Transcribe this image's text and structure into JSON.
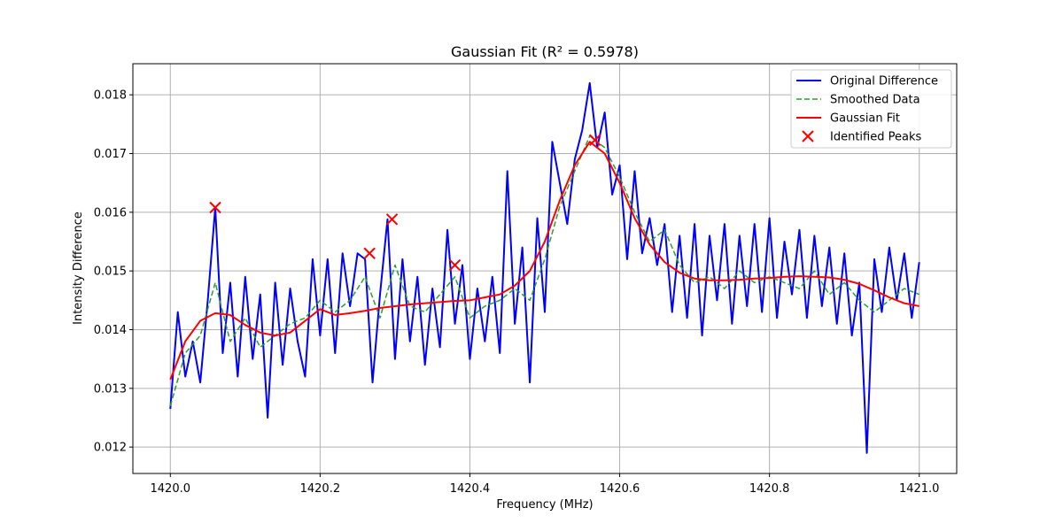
{
  "chart_data": {
    "type": "line",
    "title": "Gaussian Fit (R² = 0.5978)",
    "xlabel": "Frequency (MHz)",
    "ylabel": "Intensity Difference",
    "xlim": [
      1419.95,
      1421.05
    ],
    "ylim": [
      0.01155,
      0.01853
    ],
    "xticks": [
      1420.0,
      1420.2,
      1420.4,
      1420.6,
      1420.8,
      1421.0
    ],
    "xtick_labels": [
      "1420.0",
      "1420.2",
      "1420.4",
      "1420.6",
      "1420.8",
      "1421.0"
    ],
    "yticks": [
      0.012,
      0.013,
      0.014,
      0.015,
      0.016,
      0.017,
      0.018
    ],
    "ytick_labels": [
      "0.012",
      "0.013",
      "0.014",
      "0.015",
      "0.016",
      "0.017",
      "0.018"
    ],
    "grid": true,
    "legend_position": "upper right",
    "series": [
      {
        "name": "Original Difference",
        "style": "solid",
        "color": "#0000ff",
        "x": [
          1420.0,
          1420.01,
          1420.02,
          1420.03,
          1420.04,
          1420.05,
          1420.06,
          1420.07,
          1420.08,
          1420.09,
          1420.1,
          1420.11,
          1420.12,
          1420.13,
          1420.14,
          1420.15,
          1420.16,
          1420.17,
          1420.18,
          1420.19,
          1420.2,
          1420.21,
          1420.22,
          1420.23,
          1420.24,
          1420.25,
          1420.26,
          1420.27,
          1420.28,
          1420.29,
          1420.3,
          1420.31,
          1420.32,
          1420.33,
          1420.34,
          1420.35,
          1420.36,
          1420.37,
          1420.38,
          1420.39,
          1420.4,
          1420.41,
          1420.42,
          1420.43,
          1420.44,
          1420.45,
          1420.46,
          1420.47,
          1420.48,
          1420.49,
          1420.5,
          1420.51,
          1420.52,
          1420.53,
          1420.54,
          1420.55,
          1420.56,
          1420.57,
          1420.58,
          1420.59,
          1420.6,
          1420.61,
          1420.62,
          1420.63,
          1420.64,
          1420.65,
          1420.66,
          1420.67,
          1420.68,
          1420.69,
          1420.7,
          1420.71,
          1420.72,
          1420.73,
          1420.74,
          1420.75,
          1420.76,
          1420.77,
          1420.78,
          1420.79,
          1420.8,
          1420.81,
          1420.82,
          1420.83,
          1420.84,
          1420.85,
          1420.86,
          1420.87,
          1420.88,
          1420.89,
          1420.9,
          1420.91,
          1420.92,
          1420.93,
          1420.94,
          1420.95,
          1420.96,
          1420.97,
          1420.98,
          1420.99,
          1421.0
        ],
        "y": [
          0.01265,
          0.0143,
          0.0132,
          0.0138,
          0.0131,
          0.0145,
          0.01608,
          0.0136,
          0.0148,
          0.0132,
          0.0149,
          0.0135,
          0.0146,
          0.0125,
          0.0148,
          0.0134,
          0.0147,
          0.0138,
          0.0132,
          0.0152,
          0.0139,
          0.0152,
          0.0136,
          0.0153,
          0.0144,
          0.0153,
          0.0152,
          0.0131,
          0.0146,
          0.01588,
          0.0135,
          0.0152,
          0.0138,
          0.0149,
          0.0134,
          0.0147,
          0.0137,
          0.0157,
          0.0141,
          0.0151,
          0.0135,
          0.0147,
          0.0138,
          0.0149,
          0.0136,
          0.0167,
          0.0141,
          0.0154,
          0.0131,
          0.0159,
          0.0143,
          0.0172,
          0.0165,
          0.0158,
          0.0169,
          0.0174,
          0.0182,
          0.0171,
          0.0177,
          0.0163,
          0.0168,
          0.0152,
          0.0167,
          0.0153,
          0.0159,
          0.0151,
          0.0158,
          0.0143,
          0.0156,
          0.0142,
          0.0158,
          0.0139,
          0.0156,
          0.0145,
          0.0158,
          0.0141,
          0.0156,
          0.0144,
          0.0158,
          0.0143,
          0.0159,
          0.0142,
          0.0155,
          0.0146,
          0.0157,
          0.0142,
          0.0156,
          0.0144,
          0.0154,
          0.0141,
          0.0153,
          0.0139,
          0.0148,
          0.0119,
          0.0152,
          0.0143,
          0.0154,
          0.0145,
          0.0153,
          0.0142,
          0.01515
        ]
      },
      {
        "name": "Smoothed Data",
        "style": "dashed",
        "color": "#2ca02c",
        "x": [
          1420.0,
          1420.02,
          1420.04,
          1420.06,
          1420.08,
          1420.1,
          1420.12,
          1420.14,
          1420.16,
          1420.18,
          1420.2,
          1420.22,
          1420.24,
          1420.26,
          1420.28,
          1420.3,
          1420.32,
          1420.34,
          1420.36,
          1420.38,
          1420.4,
          1420.42,
          1420.44,
          1420.46,
          1420.48,
          1420.5,
          1420.52,
          1420.54,
          1420.56,
          1420.58,
          1420.6,
          1420.62,
          1420.64,
          1420.66,
          1420.68,
          1420.7,
          1420.72,
          1420.74,
          1420.76,
          1420.78,
          1420.8,
          1420.82,
          1420.84,
          1420.86,
          1420.88,
          1420.9,
          1420.92,
          1420.94,
          1420.96,
          1420.98,
          1421.0
        ],
        "y": [
          0.0127,
          0.0136,
          0.0139,
          0.0148,
          0.0138,
          0.0142,
          0.0137,
          0.0139,
          0.0141,
          0.0142,
          0.0145,
          0.0143,
          0.0145,
          0.0149,
          0.0142,
          0.0151,
          0.0144,
          0.0143,
          0.0146,
          0.0149,
          0.0142,
          0.0144,
          0.0145,
          0.0147,
          0.0145,
          0.0152,
          0.0161,
          0.0167,
          0.0173,
          0.0171,
          0.0166,
          0.016,
          0.0155,
          0.0157,
          0.0151,
          0.0148,
          0.0149,
          0.0147,
          0.015,
          0.0148,
          0.0149,
          0.0148,
          0.0147,
          0.015,
          0.0146,
          0.0148,
          0.0145,
          0.0143,
          0.0145,
          0.0147,
          0.0146
        ]
      },
      {
        "name": "Gaussian Fit",
        "style": "solid",
        "color": "#ff0000",
        "x": [
          1420.0,
          1420.02,
          1420.04,
          1420.06,
          1420.08,
          1420.1,
          1420.12,
          1420.14,
          1420.16,
          1420.18,
          1420.2,
          1420.22,
          1420.24,
          1420.26,
          1420.28,
          1420.3,
          1420.32,
          1420.34,
          1420.36,
          1420.38,
          1420.4,
          1420.42,
          1420.44,
          1420.46,
          1420.48,
          1420.5,
          1420.52,
          1420.54,
          1420.56,
          1420.58,
          1420.6,
          1420.62,
          1420.64,
          1420.66,
          1420.68,
          1420.7,
          1420.72,
          1420.74,
          1420.76,
          1420.78,
          1420.8,
          1420.82,
          1420.84,
          1420.86,
          1420.88,
          1420.9,
          1420.92,
          1420.94,
          1420.96,
          1420.98,
          1421.0
        ],
        "y": [
          0.01315,
          0.0138,
          0.01415,
          0.01428,
          0.01425,
          0.01408,
          0.01395,
          0.0139,
          0.01395,
          0.01415,
          0.01435,
          0.01425,
          0.01428,
          0.01432,
          0.01437,
          0.0144,
          0.01443,
          0.01445,
          0.01447,
          0.01449,
          0.0145,
          0.01455,
          0.0146,
          0.01475,
          0.015,
          0.0155,
          0.0162,
          0.0168,
          0.0172,
          0.017,
          0.0165,
          0.0159,
          0.01545,
          0.01515,
          0.01497,
          0.01487,
          0.01484,
          0.01484,
          0.01485,
          0.01487,
          0.01488,
          0.0149,
          0.01491,
          0.0149,
          0.01489,
          0.01485,
          0.01478,
          0.01467,
          0.01455,
          0.01445,
          0.0144
        ]
      },
      {
        "name": "Identified Peaks",
        "style": "markers",
        "marker": "x",
        "color": "#ff0000",
        "x": [
          1420.06,
          1420.266,
          1420.296,
          1420.38,
          1420.567
        ],
        "y": [
          0.01608,
          0.0153,
          0.01588,
          0.0151,
          0.01723
        ]
      }
    ]
  }
}
